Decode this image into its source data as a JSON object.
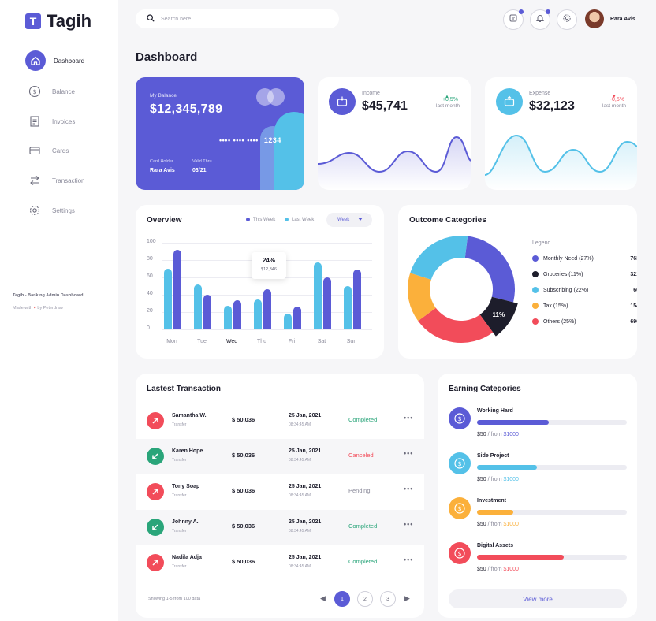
{
  "brand": {
    "logo_letter": "T",
    "name": "Tagih"
  },
  "nav": [
    {
      "label": "Dashboard",
      "icon": "home-icon",
      "active": true
    },
    {
      "label": "Balance",
      "icon": "dollar-icon",
      "active": false
    },
    {
      "label": "Invoices",
      "icon": "invoice-icon",
      "active": false
    },
    {
      "label": "Cards",
      "icon": "card-icon",
      "active": false
    },
    {
      "label": "Transaction",
      "icon": "transfer-icon",
      "active": false
    },
    {
      "label": "Settings",
      "icon": "gear-icon",
      "active": false
    }
  ],
  "sidebar_footer": {
    "line1": "Tagih - Banking Admin Dashboard",
    "made_with": "Made with",
    "heart": "♥",
    "by": "by Peterdraw"
  },
  "search": {
    "placeholder": "Search here..."
  },
  "user": {
    "name": "Rara Avis"
  },
  "page_title": "Dashboard",
  "balance_card": {
    "label": "My Balance",
    "amount": "$12,345,789",
    "masked_number": "•••• •••• ••••",
    "last4": "1234",
    "holder_label": "Card Holder",
    "holder_name": "Rara Avis",
    "valid_label": "Valid Thru",
    "valid_value": "03/21"
  },
  "income": {
    "label": "Income",
    "value": "$45,741",
    "arrow": "▲",
    "change": "+0,5%",
    "sub": "last month",
    "color": "#5b5bd6",
    "icon": "wallet-in-icon"
  },
  "expense": {
    "label": "Expense",
    "value": "$32,123",
    "arrow": "▼",
    "change": "-0,5%",
    "sub": "last month",
    "color": "#54c1e8",
    "icon": "wallet-out-icon"
  },
  "overview": {
    "title": "Overview",
    "legend": [
      "This Week",
      "Last Week"
    ],
    "dropdown": "Week",
    "tooltip": {
      "percent": "24%",
      "amount": "$12,346"
    }
  },
  "chart_data": {
    "type": "bar",
    "categories": [
      "Mon",
      "Tue",
      "Wed",
      "Thu",
      "Fri",
      "Sat",
      "Sun"
    ],
    "series": [
      {
        "name": "This Week",
        "values": [
          70,
          52,
          27,
          35,
          18,
          77,
          50
        ]
      },
      {
        "name": "Last Week",
        "values": [
          92,
          40,
          34,
          46,
          26,
          60,
          69
        ]
      }
    ],
    "yticks": [
      0,
      20,
      40,
      60,
      80,
      100
    ],
    "ylim": [
      0,
      100
    ]
  },
  "outcome": {
    "title": "Outcome Categories",
    "legend_title": "Legend",
    "items": [
      {
        "label": "Monthly Need (27%)",
        "value": "763",
        "color": "#5b5bd6",
        "pct": 27
      },
      {
        "label": "Groceries (11%)",
        "value": "321",
        "color": "#1d1d2b",
        "pct": 11
      },
      {
        "label": "Subscribing (22%)",
        "value": "60",
        "color": "#54c1e8",
        "pct": 22
      },
      {
        "label": "Tax (15%)",
        "value": "154",
        "color": "#fbb03b",
        "pct": 15
      },
      {
        "label": "Others (25%)",
        "value": "696",
        "color": "#f24c5a",
        "pct": 25
      }
    ],
    "highlight_label": "11%"
  },
  "transactions": {
    "title": "Lastest Transaction",
    "rows": [
      {
        "name": "Samantha W.",
        "type": "Transfer",
        "amount": "$ 50,036",
        "date": "25 Jan, 2021",
        "time": "08:34:45 AM",
        "status": "Completed",
        "status_color": "#2aa57a",
        "icon_color": "#f24c5a",
        "icon": "arrow-up-right-icon",
        "more": "•••"
      },
      {
        "name": "Karen Hope",
        "type": "Transfer",
        "amount": "$ 50,036",
        "date": "25 Jan, 2021",
        "time": "08:34:45 AM",
        "status": "Canceled",
        "status_color": "#f24c5a",
        "icon_color": "#2aa57a",
        "icon": "arrow-down-left-icon",
        "more": "•••"
      },
      {
        "name": "Tony Soap",
        "type": "Transfer",
        "amount": "$ 50,036",
        "date": "25 Jan, 2021",
        "time": "08:34:45 AM",
        "status": "Pending",
        "status_color": "#8a8a9a",
        "icon_color": "#f24c5a",
        "icon": "arrow-up-right-icon",
        "more": "•••"
      },
      {
        "name": "Johnny A.",
        "type": "Transfer",
        "amount": "$ 50,036",
        "date": "25 Jan, 2021",
        "time": "08:34:45 AM",
        "status": "Completed",
        "status_color": "#2aa57a",
        "icon_color": "#2aa57a",
        "icon": "arrow-down-left-icon",
        "more": "•••"
      },
      {
        "name": "Nadila Adja",
        "type": "Transfer",
        "amount": "$ 50,036",
        "date": "25 Jan, 2021",
        "time": "08:34:45 AM",
        "status": "Completed",
        "status_color": "#2aa57a",
        "icon_color": "#f24c5a",
        "icon": "arrow-up-right-icon",
        "more": "•••"
      }
    ],
    "showing": "Showing 1-5 from 100 data",
    "pages": [
      "1",
      "2",
      "3"
    ],
    "prev": "◀",
    "next": "▶"
  },
  "earning": {
    "title": "Earning Categories",
    "items": [
      {
        "title": "Working Hard",
        "amount": "$50",
        "sep": " / from ",
        "target": "$1000",
        "progress": 0.48,
        "color": "#5b5bd6"
      },
      {
        "title": "Side Project",
        "amount": "$50",
        "sep": " / from ",
        "target": "$1000",
        "progress": 0.4,
        "color": "#54c1e8"
      },
      {
        "title": "Investment",
        "amount": "$50",
        "sep": " / from ",
        "target": "$1000",
        "progress": 0.24,
        "color": "#fbb03b"
      },
      {
        "title": "Digital Assets",
        "amount": "$50",
        "sep": " / from ",
        "target": "$1000",
        "progress": 0.58,
        "color": "#f24c5a"
      }
    ],
    "view_more": "View more"
  }
}
